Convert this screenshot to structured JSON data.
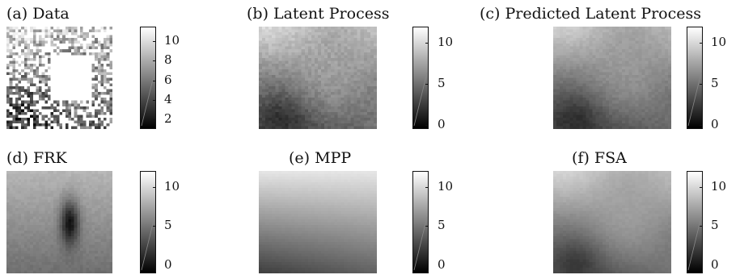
{
  "chart_data": [
    {
      "type": "heatmap",
      "title": "(a) Data",
      "colormap": "gray",
      "colorbar_ticks": [
        2,
        4,
        6,
        8,
        10
      ],
      "colorbar_range": [
        1,
        11.5
      ],
      "field": "data",
      "missing": true
    },
    {
      "type": "heatmap",
      "title": "(b) Latent Process",
      "colormap": "gray",
      "colorbar_ticks": [
        0,
        5,
        10
      ],
      "colorbar_range": [
        -0.5,
        12
      ],
      "field": "latent"
    },
    {
      "type": "heatmap",
      "title": "(c) Predicted Latent Process",
      "colormap": "gray",
      "colorbar_ticks": [
        0,
        5,
        10
      ],
      "colorbar_range": [
        -0.5,
        12
      ],
      "field": "predicted"
    },
    {
      "type": "heatmap",
      "title": "(d) FRK",
      "colormap": "gray",
      "colorbar_ticks": [
        0,
        5,
        10
      ],
      "colorbar_range": [
        -1,
        12
      ],
      "field": "frk"
    },
    {
      "type": "heatmap",
      "title": "(e) MPP",
      "colormap": "gray",
      "colorbar_ticks": [
        0,
        5,
        10
      ],
      "colorbar_range": [
        -1,
        12
      ],
      "field": "mpp"
    },
    {
      "type": "heatmap",
      "title": "(f) FSA",
      "colormap": "gray",
      "colorbar_ticks": [
        0,
        5,
        10
      ],
      "colorbar_range": [
        -1,
        12
      ],
      "field": "fsa"
    }
  ]
}
